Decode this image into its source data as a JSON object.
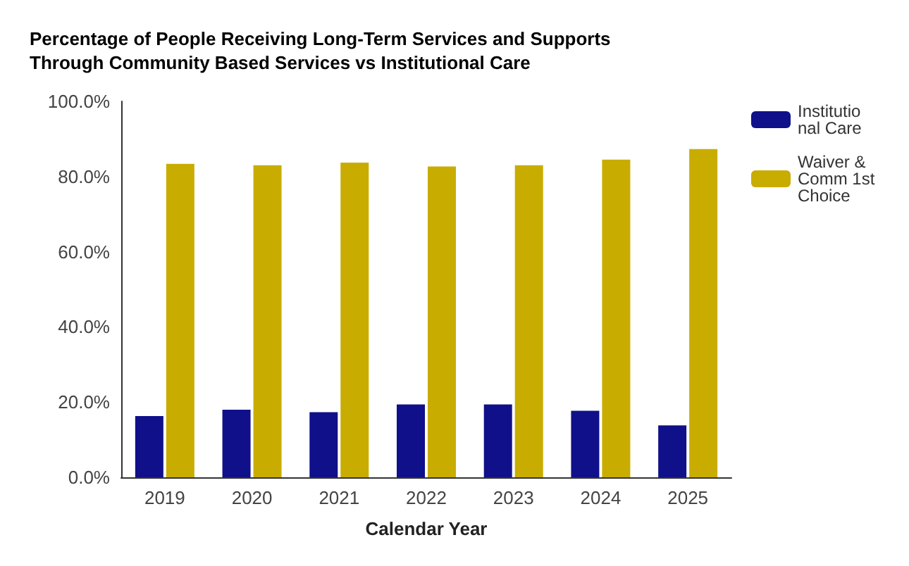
{
  "chart_data": {
    "type": "bar",
    "title": "Percentage of People Receiving Long-Term Services and Supports Through Community Based Services vs Institutional Care",
    "xlabel": "Calendar Year",
    "categories": [
      "2019",
      "2020",
      "2021",
      "2022",
      "2023",
      "2024",
      "2025"
    ],
    "series": [
      {
        "name": "Institutional Care",
        "color": "#10108a",
        "values": [
          16.3,
          18.0,
          17.3,
          19.4,
          19.4,
          17.7,
          13.8
        ]
      },
      {
        "name": "Waiver & Comm 1st Choice",
        "color": "#c9ac00",
        "values": [
          83.4,
          83.0,
          83.7,
          82.7,
          83.0,
          84.5,
          87.3
        ]
      }
    ],
    "ylim": [
      0,
      100
    ],
    "yticks": [
      {
        "value": 0,
        "label": "0.0%"
      },
      {
        "value": 20,
        "label": "20.0%"
      },
      {
        "value": 40,
        "label": "40.0%"
      },
      {
        "value": 60,
        "label": "60.0%"
      },
      {
        "value": 80,
        "label": "80.0%"
      },
      {
        "value": 100,
        "label": "100.0%"
      }
    ],
    "grid": false,
    "legend": "top right"
  }
}
